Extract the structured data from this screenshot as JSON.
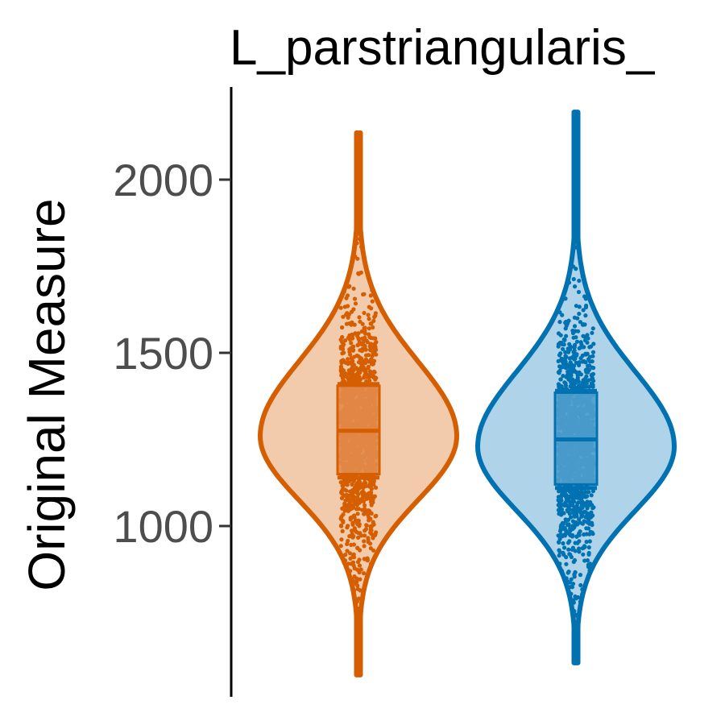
{
  "chart_data": {
    "type": "violin",
    "title": "L_parstriangularis_",
    "ylabel": "Original Measure",
    "xlabel": "",
    "ylim": [
      550,
      2260
    ],
    "yticks": [
      1000,
      1500,
      2000
    ],
    "grid": false,
    "legend": "none",
    "series": [
      {
        "color": "#D55E00",
        "fill": "#F2CBAC",
        "box_fill": "#E38B4D",
        "min": 570,
        "max": 2135,
        "q1": 1150,
        "median": 1275,
        "q3": 1405,
        "whisker_low": 1140,
        "whisker_high": 1410,
        "density_peak": 1260,
        "half_width_max": 122
      },
      {
        "color": "#0072B2",
        "fill": "#AFD3E8",
        "box_fill": "#4F9FCB",
        "min": 605,
        "max": 2195,
        "q1": 1120,
        "median": 1250,
        "q3": 1385,
        "whisker_low": 1110,
        "whisker_high": 1390,
        "density_peak": 1230,
        "half_width_max": 122
      }
    ]
  }
}
